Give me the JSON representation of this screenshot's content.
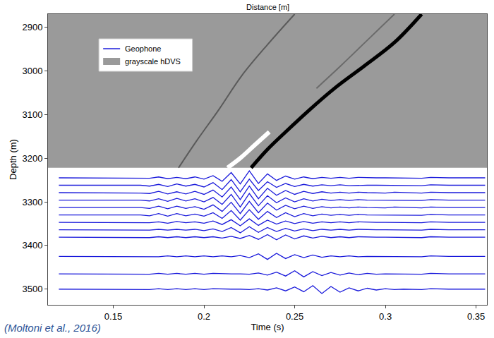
{
  "chart_data": {
    "type": "line",
    "top_axis_label": "Distance [m]",
    "x_label": "Time (s)",
    "y_label": "Depth (m)",
    "caption": "(Moltoni et al., 2016)",
    "xlim": [
      0.114,
      0.356
    ],
    "xticks": [
      0.15,
      0.2,
      0.25,
      0.3,
      0.35
    ],
    "ylim": [
      3536,
      2870
    ],
    "yticks": [
      2900,
      3000,
      3100,
      3200,
      3300,
      3400,
      3500
    ],
    "grid": false,
    "legend": "upper left",
    "x": [
      0.12,
      0.125,
      0.13,
      0.135,
      0.14,
      0.145,
      0.15,
      0.155,
      0.16,
      0.165,
      0.17,
      0.175,
      0.18,
      0.185,
      0.19,
      0.195,
      0.2,
      0.205,
      0.21,
      0.215,
      0.22,
      0.225,
      0.23,
      0.235,
      0.24,
      0.245,
      0.25,
      0.255,
      0.26,
      0.265,
      0.27,
      0.275,
      0.28,
      0.285,
      0.29,
      0.295,
      0.3,
      0.305,
      0.31,
      0.315,
      0.32,
      0.325,
      0.33,
      0.335,
      0.34,
      0.345,
      0.35,
      0.355
    ],
    "series": [
      {
        "name": "Geophone",
        "color": "#1a1adb",
        "values": [
          [
            3245,
            3245,
            3245,
            3245,
            3245,
            3245,
            3245,
            3245,
            3245,
            3245,
            3246,
            3243,
            3247,
            3244,
            3247,
            3243,
            3248,
            3240,
            3253,
            3233,
            3259,
            3229,
            3258,
            3236,
            3251,
            3241,
            3248,
            3243,
            3247,
            3244,
            3246,
            3244,
            3246,
            3244,
            3245,
            3245,
            3245,
            3245,
            3245,
            3245,
            3246,
            3244,
            3245,
            3245,
            3245,
            3245,
            3245,
            3245
          ],
          [
            3262,
            3262,
            3262,
            3262,
            3262,
            3262,
            3262,
            3262,
            3262,
            3262,
            3264,
            3260,
            3265,
            3259,
            3264,
            3260,
            3266,
            3256,
            3272,
            3249,
            3277,
            3248,
            3274,
            3254,
            3267,
            3258,
            3265,
            3260,
            3264,
            3261,
            3263,
            3261,
            3263,
            3262,
            3262,
            3262,
            3262,
            3262,
            3262,
            3262,
            3263,
            3261,
            3262,
            3262,
            3262,
            3262,
            3262,
            3262
          ],
          [
            3279,
            3279,
            3279,
            3279,
            3279,
            3279,
            3279,
            3279,
            3279,
            3280,
            3281,
            3276,
            3282,
            3277,
            3282,
            3276,
            3283,
            3273,
            3289,
            3266,
            3295,
            3264,
            3293,
            3269,
            3285,
            3274,
            3283,
            3276,
            3281,
            3277,
            3280,
            3278,
            3280,
            3278,
            3279,
            3279,
            3280,
            3278,
            3279,
            3279,
            3280,
            3278,
            3279,
            3279,
            3279,
            3279,
            3279,
            3279
          ],
          [
            3296,
            3296,
            3296,
            3296,
            3296,
            3296,
            3296,
            3296,
            3296,
            3296,
            3298,
            3293,
            3299,
            3292,
            3298,
            3293,
            3300,
            3290,
            3306,
            3283,
            3312,
            3281,
            3309,
            3286,
            3302,
            3291,
            3300,
            3293,
            3298,
            3294,
            3297,
            3295,
            3297,
            3295,
            3296,
            3296,
            3296,
            3296,
            3296,
            3296,
            3297,
            3295,
            3296,
            3296,
            3296,
            3296,
            3296,
            3296
          ],
          [
            3313,
            3313,
            3313,
            3313,
            3313,
            3313,
            3313,
            3313,
            3313,
            3313,
            3315,
            3310,
            3316,
            3310,
            3315,
            3311,
            3317,
            3307,
            3322,
            3301,
            3327,
            3299,
            3325,
            3303,
            3319,
            3308,
            3316,
            3310,
            3315,
            3311,
            3314,
            3312,
            3314,
            3312,
            3313,
            3313,
            3314,
            3312,
            3313,
            3313,
            3314,
            3312,
            3313,
            3313,
            3313,
            3313,
            3313,
            3313
          ],
          [
            3330,
            3330,
            3330,
            3330,
            3330,
            3330,
            3330,
            3330,
            3330,
            3330,
            3332,
            3327,
            3333,
            3327,
            3332,
            3328,
            3333,
            3325,
            3338,
            3320,
            3342,
            3318,
            3340,
            3322,
            3336,
            3325,
            3334,
            3327,
            3332,
            3328,
            3331,
            3329,
            3331,
            3329,
            3330,
            3330,
            3330,
            3330,
            3330,
            3330,
            3331,
            3329,
            3330,
            3330,
            3330,
            3330,
            3330,
            3330
          ],
          [
            3347,
            3347,
            3347,
            3347,
            3347,
            3347,
            3347,
            3347,
            3347,
            3347,
            3348,
            3346,
            3349,
            3345,
            3348,
            3346,
            3349,
            3344,
            3352,
            3341,
            3355,
            3339,
            3354,
            3342,
            3351,
            3344,
            3350,
            3345,
            3349,
            3346,
            3348,
            3346,
            3348,
            3346,
            3347,
            3347,
            3347,
            3347,
            3347,
            3347,
            3348,
            3346,
            3347,
            3347,
            3347,
            3347,
            3347,
            3347
          ],
          [
            3364,
            3364,
            3364,
            3364,
            3364,
            3364,
            3364,
            3364,
            3364,
            3364,
            3365,
            3363,
            3365,
            3363,
            3365,
            3363,
            3366,
            3362,
            3368,
            3359,
            3371,
            3357,
            3370,
            3359,
            3368,
            3361,
            3367,
            3362,
            3366,
            3363,
            3365,
            3363,
            3365,
            3363,
            3364,
            3364,
            3364,
            3364,
            3364,
            3364,
            3365,
            3363,
            3364,
            3364,
            3364,
            3364,
            3364,
            3364
          ],
          [
            3381,
            3381,
            3381,
            3381,
            3381,
            3381,
            3381,
            3381,
            3381,
            3381,
            3382,
            3380,
            3382,
            3380,
            3382,
            3380,
            3382,
            3380,
            3383,
            3379,
            3384,
            3377,
            3386,
            3375,
            3387,
            3376,
            3385,
            3378,
            3383,
            3379,
            3382,
            3380,
            3382,
            3380,
            3381,
            3381,
            3381,
            3381,
            3381,
            3381,
            3382,
            3380,
            3381,
            3381,
            3381,
            3381,
            3381,
            3381
          ],
          [
            3425,
            3425,
            3425,
            3425,
            3425,
            3425,
            3425,
            3425,
            3425,
            3425,
            3425,
            3426,
            3424,
            3426,
            3424,
            3426,
            3424,
            3426,
            3424,
            3426,
            3423,
            3428,
            3419,
            3432,
            3418,
            3430,
            3421,
            3428,
            3422,
            3427,
            3424,
            3426,
            3424,
            3426,
            3425,
            3425,
            3425,
            3425,
            3425,
            3425,
            3426,
            3424,
            3425,
            3425,
            3425,
            3425,
            3425,
            3425
          ],
          [
            3465,
            3465,
            3465,
            3465,
            3465,
            3465,
            3465,
            3465,
            3465,
            3465,
            3466,
            3464,
            3466,
            3464,
            3466,
            3464,
            3466,
            3464,
            3465,
            3465,
            3465,
            3466,
            3463,
            3468,
            3461,
            3470,
            3458,
            3472,
            3460,
            3469,
            3462,
            3468,
            3463,
            3467,
            3464,
            3466,
            3465,
            3465,
            3465,
            3465,
            3466,
            3464,
            3465,
            3465,
            3465,
            3465,
            3465,
            3465
          ],
          [
            3500,
            3500,
            3500,
            3500,
            3500,
            3500,
            3500,
            3500,
            3500,
            3500,
            3501,
            3499,
            3501,
            3499,
            3501,
            3499,
            3501,
            3499,
            3500,
            3500,
            3500,
            3501,
            3499,
            3502,
            3497,
            3504,
            3495,
            3506,
            3492,
            3510,
            3494,
            3507,
            3497,
            3504,
            3498,
            3502,
            3499,
            3501,
            3500,
            3500,
            3501,
            3499,
            3500,
            3500,
            3500,
            3500,
            3500,
            3500
          ]
        ]
      }
    ],
    "hdvs": {
      "name": "grayscale hDVS",
      "color": "#9a9a9a",
      "ylim": [
        2870,
        3222
      ],
      "events": [
        {
          "color": "#5a5a5a",
          "x": [
            0.186,
            0.196,
            0.208,
            0.221,
            0.235,
            0.25
          ],
          "y": [
            3222,
            3160,
            3090,
            3010,
            2940,
            2870
          ]
        },
        {
          "color": "#6a6a6a",
          "x": [
            0.262,
            0.275,
            0.29,
            0.305
          ],
          "y": [
            3040,
            2990,
            2930,
            2870
          ]
        },
        {
          "color": "#ffffff",
          "x": [
            0.213,
            0.22,
            0.228,
            0.236
          ],
          "y": [
            3222,
            3200,
            3170,
            3140
          ]
        },
        {
          "color": "#000000",
          "x": [
            0.226,
            0.235,
            0.245,
            0.258,
            0.272,
            0.288,
            0.305,
            0.32
          ],
          "y": [
            3222,
            3180,
            3140,
            3090,
            3040,
            2990,
            2935,
            2870
          ]
        }
      ]
    }
  }
}
